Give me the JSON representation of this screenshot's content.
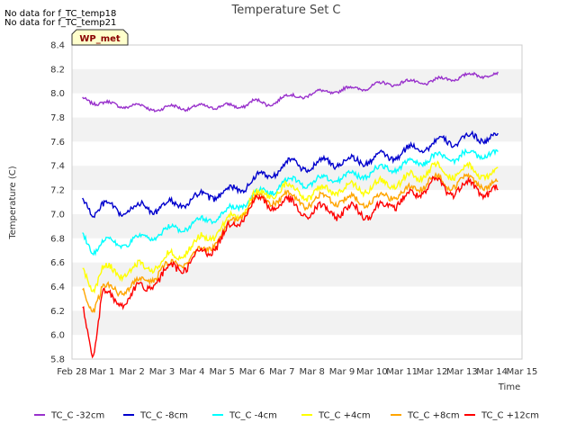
{
  "notes": [
    "No data for f_TC_temp18",
    "No data for f_TC_temp21"
  ],
  "badge": "WP_met",
  "chart_data": {
    "type": "line",
    "title": "Temperature Set C",
    "xlabel": "Time",
    "ylabel": "Temperature (C)",
    "xlim": [
      0,
      15
    ],
    "ylim": [
      5.8,
      8.4
    ],
    "x_ticks": [
      0,
      1,
      2,
      3,
      4,
      5,
      6,
      7,
      8,
      9,
      10,
      11,
      12,
      13,
      14,
      15
    ],
    "x_tick_labels": [
      "Feb 28",
      "Mar 1",
      "Mar 2",
      "Mar 3",
      "Mar 4",
      "Mar 5",
      "Mar 6",
      "Mar 7",
      "Mar 8",
      "Mar 9",
      "Mar 10",
      "Mar 11",
      "Mar 12",
      "Mar 13",
      "Mar 14",
      "Mar 15"
    ],
    "y_ticks": [
      5.8,
      6.0,
      6.2,
      6.4,
      6.6,
      6.8,
      7.0,
      7.2,
      7.4,
      7.6,
      7.8,
      8.0,
      8.2,
      8.4
    ],
    "y_tick_labels": [
      "5.8",
      "6.0",
      "6.2",
      "6.4",
      "6.6",
      "6.8",
      "7.0",
      "7.2",
      "7.4",
      "7.6",
      "7.8",
      "8.0",
      "8.2",
      "8.4"
    ],
    "grid": "horizontal alternating bands",
    "legend_position": "bottom",
    "series": [
      {
        "name": "TC_C -32cm",
        "color": "#9932cc",
        "x": [
          0.35,
          1.0,
          1.5,
          2.0,
          2.5,
          3.0,
          3.5,
          4.0,
          4.5,
          5.0,
          5.5,
          6.0,
          6.5,
          7.0,
          7.5,
          8.0,
          8.5,
          9.0,
          9.5,
          10.0,
          10.5,
          11.0,
          11.5,
          12.0,
          12.5,
          13.0,
          13.5,
          14.0,
          14.2
        ],
        "y": [
          7.95,
          7.92,
          7.9,
          7.9,
          7.88,
          7.87,
          7.89,
          7.88,
          7.89,
          7.9,
          7.88,
          7.94,
          7.9,
          7.97,
          7.97,
          8.0,
          8.01,
          8.03,
          8.04,
          8.06,
          8.08,
          8.09,
          8.09,
          8.1,
          8.12,
          8.14,
          8.15,
          8.16,
          8.15
        ]
      },
      {
        "name": "TC_C -8cm",
        "color": "#0000cd",
        "x": [
          0.35,
          0.7,
          1.0,
          1.5,
          2.0,
          2.5,
          3.0,
          3.5,
          4.0,
          4.5,
          5.0,
          5.5,
          6.0,
          6.5,
          7.0,
          7.5,
          8.0,
          8.5,
          9.0,
          9.5,
          10.0,
          10.5,
          11.0,
          11.5,
          12.0,
          12.5,
          13.0,
          13.5,
          14.0,
          14.2
        ],
        "y": [
          7.1,
          7.02,
          7.08,
          7.02,
          7.05,
          7.05,
          7.06,
          7.08,
          7.12,
          7.15,
          7.18,
          7.2,
          7.28,
          7.32,
          7.4,
          7.42,
          7.38,
          7.45,
          7.42,
          7.45,
          7.45,
          7.48,
          7.5,
          7.55,
          7.58,
          7.6,
          7.62,
          7.63,
          7.65,
          7.62
        ]
      },
      {
        "name": "TC_C -4cm",
        "color": "#00ffff",
        "x": [
          0.35,
          0.7,
          1.0,
          1.5,
          2.0,
          2.5,
          3.0,
          3.5,
          4.0,
          4.5,
          5.0,
          5.5,
          6.0,
          6.5,
          7.0,
          7.5,
          8.0,
          8.5,
          9.0,
          9.5,
          10.0,
          10.5,
          11.0,
          11.5,
          12.0,
          12.5,
          13.0,
          13.5,
          14.0,
          14.2
        ],
        "y": [
          6.82,
          6.7,
          6.78,
          6.75,
          6.78,
          6.8,
          6.85,
          6.88,
          6.92,
          6.95,
          7.0,
          7.05,
          7.15,
          7.18,
          7.25,
          7.28,
          7.25,
          7.3,
          7.3,
          7.32,
          7.35,
          7.38,
          7.4,
          7.42,
          7.48,
          7.45,
          7.5,
          7.48,
          7.52,
          7.48
        ]
      },
      {
        "name": "TC_C +4cm",
        "color": "#ffff00",
        "x": [
          0.35,
          0.7,
          1.0,
          1.5,
          2.0,
          2.5,
          3.0,
          3.5,
          4.0,
          4.5,
          5.0,
          5.5,
          6.0,
          6.5,
          7.0,
          7.5,
          8.0,
          8.5,
          9.0,
          9.5,
          10.0,
          10.5,
          11.0,
          11.5,
          12.0,
          12.5,
          13.0,
          13.5,
          14.0,
          14.2
        ],
        "y": [
          6.52,
          6.4,
          6.55,
          6.5,
          6.55,
          6.55,
          6.62,
          6.65,
          6.75,
          6.8,
          6.9,
          6.98,
          7.15,
          7.15,
          7.22,
          7.2,
          7.15,
          7.22,
          7.2,
          7.22,
          7.22,
          7.25,
          7.28,
          7.3,
          7.4,
          7.32,
          7.38,
          7.33,
          7.35,
          7.32
        ]
      },
      {
        "name": "TC_C +8cm",
        "color": "#ffa500",
        "x": [
          0.35,
          0.7,
          1.0,
          1.5,
          2.0,
          2.5,
          3.0,
          3.5,
          4.0,
          4.5,
          5.0,
          5.5,
          6.0,
          6.5,
          7.0,
          7.5,
          8.0,
          8.5,
          9.0,
          9.5,
          10.0,
          10.5,
          11.0,
          11.5,
          12.0,
          12.5,
          13.0,
          13.5,
          14.0,
          14.2
        ],
        "y": [
          6.35,
          6.22,
          6.4,
          6.35,
          6.42,
          6.45,
          6.55,
          6.58,
          6.65,
          6.7,
          6.85,
          6.95,
          7.12,
          7.1,
          7.15,
          7.12,
          7.08,
          7.15,
          7.1,
          7.12,
          7.1,
          7.15,
          7.18,
          7.2,
          7.32,
          7.22,
          7.3,
          7.25,
          7.26,
          7.24
        ]
      },
      {
        "name": "TC_C +12cm",
        "color": "#ff0000",
        "x": [
          0.35,
          0.7,
          1.0,
          1.5,
          2.0,
          2.5,
          3.0,
          3.5,
          4.0,
          4.5,
          5.0,
          5.5,
          6.0,
          6.5,
          7.0,
          7.5,
          8.0,
          8.5,
          9.0,
          9.5,
          10.0,
          10.5,
          11.0,
          11.5,
          12.0,
          12.5,
          13.0,
          13.5,
          14.0,
          14.2
        ],
        "y": [
          6.2,
          5.85,
          6.35,
          6.25,
          6.35,
          6.38,
          6.5,
          6.55,
          6.62,
          6.68,
          6.82,
          6.92,
          7.1,
          7.08,
          7.1,
          7.05,
          7.0,
          7.05,
          7.0,
          7.05,
          7.0,
          7.08,
          7.12,
          7.15,
          7.28,
          7.18,
          7.25,
          7.2,
          7.2,
          7.18
        ]
      }
    ]
  }
}
